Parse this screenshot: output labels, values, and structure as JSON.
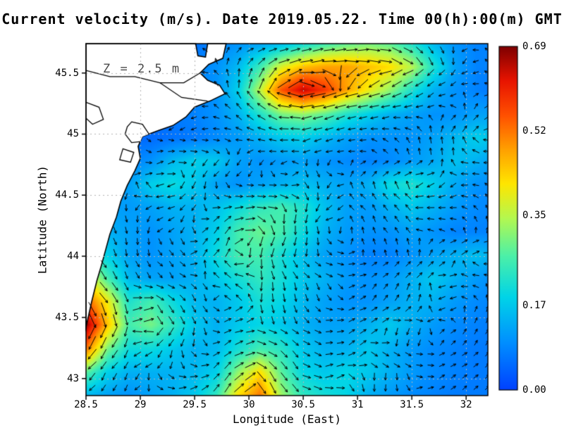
{
  "chart": {
    "title": "Current velocity (m/s). Date 2019.05.22. Time 00(h):00(m) GMT",
    "annotation": "Z = 2.5 m",
    "xlabel": "Longitude (East)",
    "ylabel": "Latitude (North)"
  },
  "chart_data": {
    "type": "heatmap",
    "field": "sea surface current speed (m/s) with velocity vectors",
    "date": "2019.05.22",
    "time": "00(h):00(m) GMT",
    "depth_m": 2.5,
    "xlim": [
      28.5,
      32.2
    ],
    "ylim": [
      42.86,
      45.74
    ],
    "xticks": [
      "28.5",
      "29",
      "29.5",
      "30",
      "30.5",
      "31",
      "31.5",
      "32"
    ],
    "yticks": [
      "43",
      "43.5",
      "44",
      "44.5",
      "45",
      "45.5"
    ],
    "grid": true,
    "colorbar": {
      "min": 0,
      "max": 0.69,
      "ticks": [
        "0.00",
        "0.17",
        "0.35",
        "0.52",
        "0.69"
      ],
      "position": "right"
    },
    "colormap": [
      [
        0.0,
        "#0041ff"
      ],
      [
        0.14,
        "#0090ff"
      ],
      [
        0.27,
        "#00d4e8"
      ],
      [
        0.39,
        "#4cf0a8"
      ],
      [
        0.5,
        "#b4f850"
      ],
      [
        0.6,
        "#ffe600"
      ],
      [
        0.7,
        "#ffa000"
      ],
      [
        0.8,
        "#ff5000"
      ],
      [
        0.9,
        "#e81400"
      ],
      [
        1.0,
        "#7e0000"
      ]
    ],
    "lons": [
      28.5,
      28.7,
      28.9,
      29.1,
      29.3,
      29.5,
      29.7,
      29.9,
      30.1,
      30.3,
      30.5,
      30.7,
      30.9,
      31.1,
      31.3,
      31.5,
      31.7,
      31.9,
      32.1,
      32.3
    ],
    "lats": [
      45.74,
      45.55,
      45.36,
      45.16,
      44.97,
      44.78,
      44.59,
      44.4,
      44.2,
      44.01,
      43.82,
      43.63,
      43.44,
      43.24,
      43.05,
      42.86
    ],
    "speed": [
      [
        0.05,
        0.05,
        0.05,
        0.05,
        0.06,
        0.06,
        0.08,
        0.1,
        0.12,
        0.15,
        0.2,
        0.25,
        0.28,
        0.3,
        0.28,
        0.22,
        0.15,
        0.1,
        0.08,
        0.08
      ],
      [
        0.05,
        0.05,
        0.05,
        0.06,
        0.06,
        0.08,
        0.1,
        0.15,
        0.25,
        0.38,
        0.45,
        0.48,
        0.48,
        0.45,
        0.42,
        0.35,
        0.22,
        0.12,
        0.08,
        0.08
      ],
      [
        0.05,
        0.05,
        0.06,
        0.06,
        0.07,
        0.08,
        0.1,
        0.18,
        0.35,
        0.55,
        0.65,
        0.58,
        0.48,
        0.4,
        0.32,
        0.22,
        0.14,
        0.1,
        0.08,
        0.06
      ],
      [
        0.05,
        0.05,
        0.06,
        0.06,
        0.07,
        0.08,
        0.1,
        0.14,
        0.22,
        0.3,
        0.32,
        0.28,
        0.22,
        0.18,
        0.14,
        0.12,
        0.1,
        0.1,
        0.12,
        0.12
      ],
      [
        0.04,
        0.04,
        0.05,
        0.05,
        0.06,
        0.07,
        0.09,
        0.11,
        0.14,
        0.17,
        0.18,
        0.15,
        0.12,
        0.1,
        0.1,
        0.1,
        0.12,
        0.15,
        0.18,
        0.16
      ],
      [
        0.05,
        0.06,
        0.08,
        0.1,
        0.15,
        0.18,
        0.17,
        0.12,
        0.1,
        0.11,
        0.12,
        0.1,
        0.09,
        0.08,
        0.09,
        0.11,
        0.13,
        0.16,
        0.14,
        0.11
      ],
      [
        0.08,
        0.1,
        0.12,
        0.18,
        0.2,
        0.17,
        0.12,
        0.1,
        0.12,
        0.14,
        0.16,
        0.14,
        0.12,
        0.14,
        0.2,
        0.22,
        0.18,
        0.13,
        0.1,
        0.09
      ],
      [
        0.1,
        0.12,
        0.11,
        0.12,
        0.14,
        0.14,
        0.16,
        0.2,
        0.24,
        0.26,
        0.22,
        0.16,
        0.12,
        0.11,
        0.14,
        0.17,
        0.14,
        0.11,
        0.09,
        0.08
      ],
      [
        0.12,
        0.14,
        0.12,
        0.1,
        0.12,
        0.14,
        0.18,
        0.26,
        0.29,
        0.26,
        0.2,
        0.14,
        0.11,
        0.1,
        0.1,
        0.12,
        0.1,
        0.08,
        0.08,
        0.08
      ],
      [
        0.25,
        0.18,
        0.12,
        0.1,
        0.12,
        0.14,
        0.2,
        0.26,
        0.26,
        0.21,
        0.16,
        0.12,
        0.1,
        0.08,
        0.08,
        0.1,
        0.12,
        0.14,
        0.16,
        0.13
      ],
      [
        0.4,
        0.26,
        0.15,
        0.12,
        0.12,
        0.14,
        0.17,
        0.21,
        0.24,
        0.21,
        0.17,
        0.14,
        0.11,
        0.1,
        0.11,
        0.14,
        0.17,
        0.14,
        0.11,
        0.09
      ],
      [
        0.55,
        0.4,
        0.22,
        0.26,
        0.2,
        0.15,
        0.14,
        0.17,
        0.21,
        0.19,
        0.15,
        0.12,
        0.1,
        0.1,
        0.12,
        0.14,
        0.14,
        0.11,
        0.09,
        0.08
      ],
      [
        0.68,
        0.45,
        0.26,
        0.3,
        0.24,
        0.17,
        0.14,
        0.17,
        0.19,
        0.17,
        0.14,
        0.12,
        0.12,
        0.14,
        0.17,
        0.14,
        0.11,
        0.09,
        0.08,
        0.07
      ],
      [
        0.52,
        0.3,
        0.2,
        0.2,
        0.17,
        0.14,
        0.15,
        0.21,
        0.26,
        0.23,
        0.17,
        0.14,
        0.14,
        0.17,
        0.14,
        0.11,
        0.09,
        0.08,
        0.07,
        0.07
      ],
      [
        0.28,
        0.18,
        0.14,
        0.14,
        0.14,
        0.15,
        0.18,
        0.32,
        0.42,
        0.28,
        0.19,
        0.17,
        0.19,
        0.17,
        0.14,
        0.11,
        0.09,
        0.08,
        0.07,
        0.07
      ],
      [
        0.15,
        0.12,
        0.1,
        0.12,
        0.14,
        0.17,
        0.24,
        0.42,
        0.52,
        0.33,
        0.24,
        0.21,
        0.19,
        0.14,
        0.11,
        0.09,
        0.08,
        0.07,
        0.07,
        0.07
      ]
    ],
    "vectors": {
      "note": "black arrows on regular grid; direction follows speed isolines (stream-like) plus weak basin-scale cyclonic gyre centered near 30.6E 44.3N; arrow length proportional to local speed",
      "spacing_px": 16,
      "gyre_center": [
        30.6,
        44.3
      ]
    },
    "land": {
      "coast": [
        [
          28.5,
          45.74
        ],
        [
          29.51,
          45.74
        ],
        [
          29.53,
          45.64
        ],
        [
          29.6,
          45.63
        ],
        [
          29.62,
          45.74
        ],
        [
          29.79,
          45.74
        ],
        [
          29.76,
          45.62
        ],
        [
          29.63,
          45.57
        ],
        [
          29.55,
          45.5
        ],
        [
          29.62,
          45.44
        ],
        [
          29.73,
          45.4
        ],
        [
          29.78,
          45.33
        ],
        [
          29.64,
          45.27
        ],
        [
          29.5,
          45.22
        ],
        [
          29.42,
          45.14
        ],
        [
          29.3,
          45.07
        ],
        [
          29.17,
          45.03
        ],
        [
          29.02,
          44.98
        ],
        [
          28.98,
          44.9
        ],
        [
          29.0,
          44.8
        ],
        [
          28.95,
          44.7
        ],
        [
          28.88,
          44.58
        ],
        [
          28.82,
          44.45
        ],
        [
          28.78,
          44.32
        ],
        [
          28.72,
          44.18
        ],
        [
          28.68,
          44.05
        ],
        [
          28.64,
          43.92
        ],
        [
          28.6,
          43.8
        ],
        [
          28.55,
          43.62
        ],
        [
          28.52,
          43.5
        ],
        [
          28.5,
          43.42
        ]
      ],
      "lagoons": [
        [
          [
            28.92,
            45.1
          ],
          [
            29.02,
            45.08
          ],
          [
            29.08,
            45.0
          ],
          [
            29.02,
            44.94
          ],
          [
            28.92,
            44.93
          ],
          [
            28.86,
            45.0
          ],
          [
            28.88,
            45.06
          ]
        ],
        [
          [
            28.84,
            44.88
          ],
          [
            28.94,
            44.85
          ],
          [
            28.91,
            44.77
          ],
          [
            28.81,
            44.79
          ]
        ],
        [
          [
            28.5,
            45.26
          ],
          [
            28.62,
            45.22
          ],
          [
            28.66,
            45.12
          ],
          [
            28.56,
            45.08
          ],
          [
            28.5,
            45.13
          ]
        ]
      ],
      "rivers": [
        [
          [
            28.5,
            45.52
          ],
          [
            28.72,
            45.47
          ],
          [
            28.95,
            45.47
          ],
          [
            29.18,
            45.42
          ],
          [
            29.4,
            45.42
          ],
          [
            29.55,
            45.5
          ]
        ],
        [
          [
            29.18,
            45.42
          ],
          [
            29.38,
            45.3
          ],
          [
            29.62,
            45.27
          ]
        ]
      ]
    },
    "style": {
      "land_fill": "#ffffff",
      "coast_line": "#000000",
      "grid_line": "#b4b4b4",
      "arrow": "#000000",
      "frame": "#000000"
    }
  }
}
